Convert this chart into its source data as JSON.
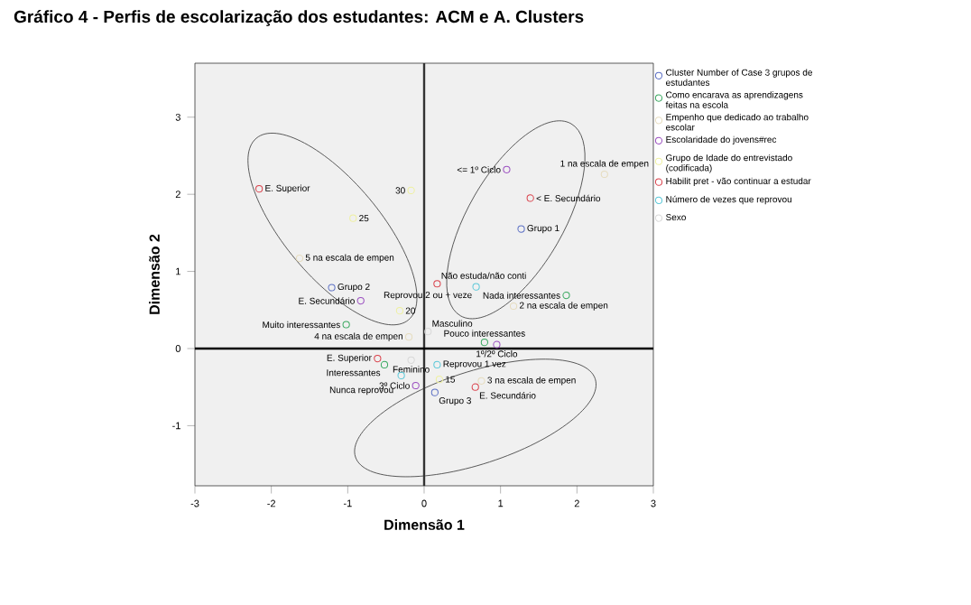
{
  "chart_data": {
    "type": "scatter",
    "title": "Gráfico 4 - Perfis de escolarização dos estudantes: ACM e A. Clusters",
    "xlabel": "Dimensão 1",
    "ylabel": "Dimensão 2",
    "xlim": [
      -3,
      3
    ],
    "ylim": [
      -1.78,
      3.7
    ],
    "xticks": [
      -3,
      -2,
      -1,
      0,
      1,
      2,
      3
    ],
    "yticks": [
      -1,
      0,
      1,
      2,
      3
    ],
    "marker": "circle",
    "legend": "right",
    "grid": false,
    "ref_lines": [
      {
        "axis": "x",
        "value": 0
      },
      {
        "axis": "y",
        "value": 0
      }
    ],
    "series": [
      {
        "name": "Cluster Number of Case 3 grupos de estudantes",
        "color": "#5b6fc4",
        "x": [
          1.27,
          -1.21,
          0.14
        ],
        "values": [
          1.55,
          0.79,
          -0.57
        ]
      },
      {
        "name": "Como encarava as aprendizagens feitas na escola",
        "color": "#3aa860",
        "x": [
          1.86,
          -1.02,
          0.79,
          -0.52
        ],
        "values": [
          0.69,
          0.31,
          0.08,
          -0.21
        ]
      },
      {
        "name": "Empenho que dedicado ao trabalho escolar",
        "color": "#e6dcbe",
        "x": [
          2.36,
          1.17,
          0.75,
          -0.2,
          -1.63
        ],
        "values": [
          2.26,
          0.55,
          -0.42,
          0.15,
          1.17
        ]
      },
      {
        "name": "Escolaridade do jovens#rec",
        "color": "#9b4fc0",
        "x": [
          1.08,
          0.95,
          -0.11,
          -0.83
        ],
        "values": [
          2.32,
          0.05,
          -0.48,
          0.62
        ]
      },
      {
        "name": "Grupo de Idade do entrevistado (codificada)",
        "color": "#eef0a0",
        "x": [
          -0.17,
          -0.93,
          -0.32,
          0.2
        ],
        "values": [
          2.05,
          1.69,
          0.49,
          -0.4
        ]
      },
      {
        "name": "Habilit pret - vão continuar a estudar",
        "color": "#d9404a",
        "x": [
          -2.16,
          1.39,
          0.17,
          -0.61,
          0.67
        ],
        "values": [
          2.07,
          1.95,
          0.84,
          -0.13,
          -0.5
        ]
      },
      {
        "name": "Número de vezes que reprovou",
        "color": "#5bc8d8",
        "x": [
          0.68,
          0.17,
          -0.3
        ],
        "values": [
          0.8,
          -0.21,
          -0.35
        ]
      },
      {
        "name": "Sexo",
        "color": "#d8d8d8",
        "x": [
          0.05,
          -0.17
        ],
        "values": [
          0.22,
          -0.15
        ]
      }
    ],
    "annotations": [
      {
        "text": "Grupo 1",
        "x": 1.27,
        "y": 1.55
      },
      {
        "text": "Grupo 2",
        "x": -1.21,
        "y": 0.79
      },
      {
        "text": "Grupo 3",
        "x": 0.14,
        "y": -0.57
      },
      {
        "text": "Nada interessantes",
        "x": 1.86,
        "y": 0.69
      },
      {
        "text": "Muito interessantes",
        "x": -1.02,
        "y": 0.31
      },
      {
        "text": "Pouco interessantes",
        "x": 0.79,
        "y": 0.08
      },
      {
        "text": "Interessantes",
        "x": -0.52,
        "y": -0.21
      },
      {
        "text": "1 na escala de empen",
        "x": 2.36,
        "y": 2.26
      },
      {
        "text": "2 na escala de empen",
        "x": 1.17,
        "y": 0.55
      },
      {
        "text": "3 na escala de empen",
        "x": 0.75,
        "y": -0.42
      },
      {
        "text": "4 na escala de empen",
        "x": -0.2,
        "y": 0.15
      },
      {
        "text": "5 na escala de empen",
        "x": -1.63,
        "y": 1.17
      },
      {
        "text": "<= 1º Ciclo",
        "x": 1.08,
        "y": 2.32
      },
      {
        "text": "1º/2º Ciclo",
        "x": 0.95,
        "y": 0.05
      },
      {
        "text": "3º Ciclo",
        "x": -0.11,
        "y": -0.48
      },
      {
        "text": "E. Secundário",
        "x": -0.83,
        "y": 0.62
      },
      {
        "text": "30",
        "x": -0.17,
        "y": 2.05
      },
      {
        "text": "25",
        "x": -0.93,
        "y": 1.69
      },
      {
        "text": "20",
        "x": -0.32,
        "y": 0.49
      },
      {
        "text": "15",
        "x": 0.2,
        "y": -0.4
      },
      {
        "text": "E. Superior",
        "x": -2.16,
        "y": 2.07
      },
      {
        "text": "< E. Secundário",
        "x": 1.39,
        "y": 1.95
      },
      {
        "text": "Não estuda/não conti",
        "x": 0.17,
        "y": 0.84
      },
      {
        "text": "E. Superior",
        "x": -0.61,
        "y": -0.13
      },
      {
        "text": "E. Secundário",
        "x": 0.67,
        "y": -0.5
      },
      {
        "text": "Reprovou 2 ou + veze",
        "x": 0.68,
        "y": 0.8
      },
      {
        "text": "Reprovou 1 vez",
        "x": 0.17,
        "y": -0.21
      },
      {
        "text": "Nunca reprovou",
        "x": -0.3,
        "y": -0.35
      },
      {
        "text": "Masculino",
        "x": 0.05,
        "y": 0.22
      },
      {
        "text": "Feminino",
        "x": -0.17,
        "y": -0.15
      }
    ]
  }
}
